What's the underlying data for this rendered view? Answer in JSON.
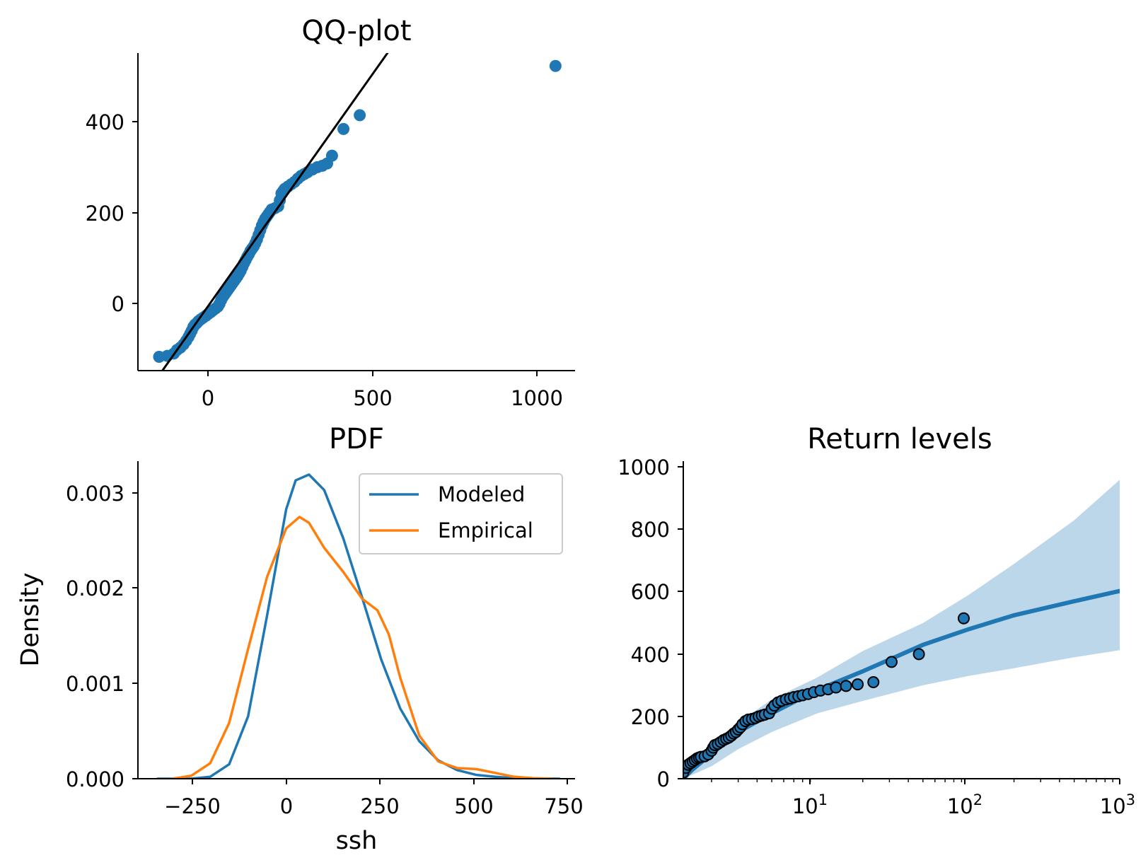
{
  "colors": {
    "blue": "#1f77b4",
    "orange": "#ff7f0e",
    "band": "#bcd6ea",
    "black": "#000000"
  },
  "qq": {
    "title": "QQ-plot",
    "xticks": [
      "0",
      "500",
      "1000"
    ],
    "yticks": [
      "0",
      "200",
      "400"
    ]
  },
  "pdf": {
    "title": "PDF",
    "xlabel": "ssh",
    "ylabel": "Density",
    "xticks": [
      "−250",
      "0",
      "250",
      "500",
      "750"
    ],
    "yticks": [
      "0.000",
      "0.001",
      "0.002",
      "0.003"
    ],
    "legend": {
      "modeled": "Modeled",
      "empirical": "Empirical"
    }
  },
  "rl": {
    "title": "Return levels",
    "yticks": [
      "0",
      "200",
      "400",
      "600",
      "800",
      "1000"
    ],
    "xtick_base": "10",
    "xtick_exps": [
      "1",
      "2",
      "3"
    ]
  },
  "chart_data": [
    {
      "type": "scatter",
      "title": "QQ-plot",
      "xlim": [
        -220,
        1120
      ],
      "ylim": [
        -145,
        545
      ],
      "reference_line": {
        "slope": 1,
        "intercept": 0
      },
      "points": [
        [
          -155,
          -115
        ],
        [
          -130,
          -113
        ],
        [
          -110,
          -108
        ],
        [
          -100,
          -100
        ],
        [
          -90,
          -95
        ],
        [
          -80,
          -88
        ],
        [
          -72,
          -80
        ],
        [
          -65,
          -72
        ],
        [
          -60,
          -65
        ],
        [
          -55,
          -58
        ],
        [
          -50,
          -50
        ],
        [
          -45,
          -45
        ],
        [
          -40,
          -42
        ],
        [
          -35,
          -38
        ],
        [
          -28,
          -34
        ],
        [
          -20,
          -30
        ],
        [
          -12,
          -26
        ],
        [
          -5,
          -22
        ],
        [
          3,
          -18
        ],
        [
          10,
          -14
        ],
        [
          18,
          -10
        ],
        [
          25,
          -6
        ],
        [
          30,
          0
        ],
        [
          35,
          8
        ],
        [
          40,
          15
        ],
        [
          45,
          20
        ],
        [
          50,
          25
        ],
        [
          55,
          30
        ],
        [
          60,
          35
        ],
        [
          65,
          40
        ],
        [
          70,
          45
        ],
        [
          75,
          50
        ],
        [
          80,
          55
        ],
        [
          85,
          60
        ],
        [
          90,
          66
        ],
        [
          95,
          72
        ],
        [
          100,
          80
        ],
        [
          105,
          88
        ],
        [
          110,
          95
        ],
        [
          115,
          102
        ],
        [
          120,
          108
        ],
        [
          125,
          115
        ],
        [
          130,
          120
        ],
        [
          135,
          125
        ],
        [
          140,
          132
        ],
        [
          145,
          140
        ],
        [
          150,
          150
        ],
        [
          155,
          160
        ],
        [
          160,
          170
        ],
        [
          165,
          178
        ],
        [
          170,
          185
        ],
        [
          175,
          190
        ],
        [
          180,
          195
        ],
        [
          185,
          200
        ],
        [
          190,
          205
        ],
        [
          200,
          208
        ],
        [
          210,
          212
        ],
        [
          215,
          225
        ],
        [
          220,
          240
        ],
        [
          225,
          245
        ],
        [
          230,
          250
        ],
        [
          240,
          255
        ],
        [
          250,
          260
        ],
        [
          260,
          265
        ],
        [
          270,
          272
        ],
        [
          280,
          278
        ],
        [
          290,
          282
        ],
        [
          300,
          286
        ],
        [
          315,
          292
        ],
        [
          330,
          297
        ],
        [
          345,
          300
        ],
        [
          360,
          305
        ],
        [
          375,
          322
        ],
        [
          410,
          380
        ],
        [
          460,
          410
        ],
        [
          1060,
          517
        ]
      ]
    },
    {
      "type": "line",
      "title": "PDF",
      "xlabel": "ssh",
      "ylabel": "Density",
      "xlim": [
        -390,
        760
      ],
      "ylim": [
        0,
        0.0033
      ],
      "series": [
        {
          "name": "Modeled",
          "points": [
            [
              -340,
              0
            ],
            [
              -250,
              0
            ],
            [
              -200,
              2e-05
            ],
            [
              -150,
              0.00015
            ],
            [
              -100,
              0.00065
            ],
            [
              -50,
              0.0017
            ],
            [
              0,
              0.0028
            ],
            [
              25,
              0.0031
            ],
            [
              60,
              0.00316
            ],
            [
              100,
              0.003
            ],
            [
              150,
              0.0025
            ],
            [
              200,
              0.00188
            ],
            [
              250,
              0.00124
            ],
            [
              300,
              0.00073
            ],
            [
              350,
              0.00039
            ],
            [
              400,
              0.00019
            ],
            [
              450,
              9e-05
            ],
            [
              500,
              4e-05
            ],
            [
              550,
              2e-05
            ],
            [
              600,
              6e-06
            ],
            [
              650,
              2e-06
            ],
            [
              720,
              0
            ]
          ]
        },
        {
          "name": "Empirical",
          "points": [
            [
              -300,
              0
            ],
            [
              -250,
              3e-05
            ],
            [
              -200,
              0.00016
            ],
            [
              -150,
              0.00058
            ],
            [
              -100,
              0.00135
            ],
            [
              -50,
              0.0021
            ],
            [
              0,
              0.0026
            ],
            [
              35,
              0.00272
            ],
            [
              60,
              0.00266
            ],
            [
              100,
              0.0024
            ],
            [
              150,
              0.00215
            ],
            [
              200,
              0.00187
            ],
            [
              240,
              0.00175
            ],
            [
              270,
              0.0015
            ],
            [
              300,
              0.00105
            ],
            [
              350,
              0.00045
            ],
            [
              400,
              0.00018
            ],
            [
              450,
              0.00011
            ],
            [
              500,
              0.0001
            ],
            [
              550,
              6e-05
            ],
            [
              600,
              2e-05
            ],
            [
              650,
              5e-06
            ],
            [
              700,
              0
            ]
          ]
        }
      ]
    },
    {
      "type": "line",
      "title": "Return levels",
      "xscale": "log",
      "xlim": [
        1.3,
        1000
      ],
      "ylim": [
        0,
        1020
      ],
      "fitted": [
        [
          1.3,
          0
        ],
        [
          1.5,
          30
        ],
        [
          2,
          80
        ],
        [
          3,
          150
        ],
        [
          5,
          210
        ],
        [
          10,
          285
        ],
        [
          20,
          345
        ],
        [
          50,
          430
        ],
        [
          100,
          480
        ],
        [
          200,
          525
        ],
        [
          500,
          570
        ],
        [
          1000,
          603
        ]
      ],
      "ci_lower": [
        [
          1.3,
          0
        ],
        [
          2,
          40
        ],
        [
          3,
          95
        ],
        [
          5,
          150
        ],
        [
          10,
          210
        ],
        [
          20,
          250
        ],
        [
          50,
          300
        ],
        [
          100,
          330
        ],
        [
          200,
          355
        ],
        [
          500,
          390
        ],
        [
          1000,
          413
        ]
      ],
      "ci_upper": [
        [
          1.3,
          20
        ],
        [
          2,
          110
        ],
        [
          3,
          180
        ],
        [
          5,
          255
        ],
        [
          10,
          325
        ],
        [
          20,
          410
        ],
        [
          50,
          500
        ],
        [
          100,
          590
        ],
        [
          200,
          690
        ],
        [
          500,
          830
        ],
        [
          1000,
          960
        ]
      ],
      "observed": [
        [
          1.3,
          20
        ],
        [
          1.35,
          35
        ],
        [
          1.4,
          45
        ],
        [
          1.45,
          50
        ],
        [
          1.5,
          55
        ],
        [
          1.55,
          60
        ],
        [
          1.6,
          65
        ],
        [
          1.65,
          68
        ],
        [
          1.7,
          70
        ],
        [
          1.8,
          72
        ],
        [
          1.9,
          78
        ],
        [
          2.0,
          90
        ],
        [
          2.05,
          100
        ],
        [
          2.1,
          108
        ],
        [
          2.2,
          112
        ],
        [
          2.3,
          118
        ],
        [
          2.4,
          124
        ],
        [
          2.5,
          128
        ],
        [
          2.6,
          132
        ],
        [
          2.7,
          138
        ],
        [
          2.8,
          145
        ],
        [
          2.9,
          150
        ],
        [
          3.0,
          158
        ],
        [
          3.1,
          165
        ],
        [
          3.2,
          175
        ],
        [
          3.35,
          185
        ],
        [
          3.5,
          190
        ],
        [
          3.7,
          192
        ],
        [
          3.9,
          195
        ],
        [
          4.1,
          200
        ],
        [
          4.3,
          203
        ],
        [
          4.5,
          206
        ],
        [
          4.8,
          210
        ],
        [
          5.0,
          225
        ],
        [
          5.2,
          235
        ],
        [
          5.5,
          245
        ],
        [
          5.8,
          250
        ],
        [
          6.2,
          255
        ],
        [
          6.6,
          258
        ],
        [
          7.0,
          262
        ],
        [
          7.5,
          265
        ],
        [
          8.0,
          268
        ],
        [
          8.7,
          272
        ],
        [
          9.5,
          278
        ],
        [
          10.5,
          283
        ],
        [
          11.8,
          287
        ],
        [
          13.3,
          293
        ],
        [
          15.5,
          298
        ],
        [
          18.5,
          303
        ],
        [
          23.5,
          310
        ],
        [
          31,
          375
        ],
        [
          47,
          400
        ],
        [
          93,
          515
        ]
      ]
    }
  ]
}
